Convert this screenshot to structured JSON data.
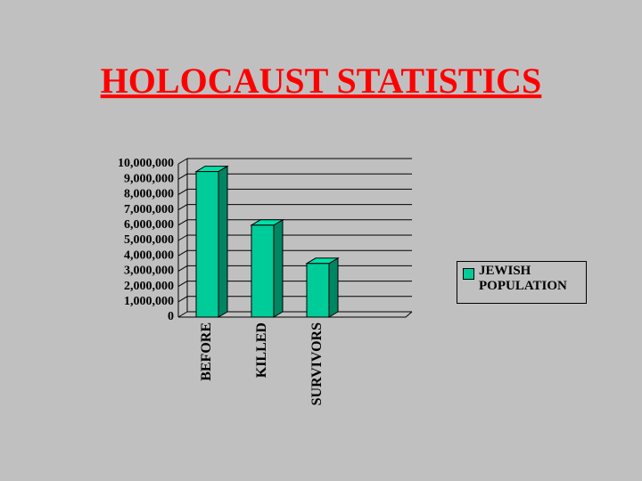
{
  "chart_data": {
    "type": "bar3d",
    "title": "HOLOCAUST STATISTICS",
    "categories": [
      "BEFORE",
      "KILLED",
      "SURVIVORS"
    ],
    "series": [
      {
        "name": "JEWISH POPULATION",
        "color": "#00cc99",
        "values": [
          9500000,
          6000000,
          3500000
        ]
      }
    ],
    "ylim": [
      0,
      10000000
    ],
    "yticks": [
      0,
      {
        "value": 1000000,
        "label": "1,000,000"
      },
      {
        "value": 2000000,
        "label": "2,000,000"
      },
      {
        "value": 3000000,
        "label": "3,000,000"
      },
      {
        "value": 4000000,
        "label": "4,000,000"
      },
      {
        "value": 5000000,
        "label": "5,000,000"
      },
      {
        "value": 6000000,
        "label": "6,000,000"
      },
      {
        "value": 7000000,
        "label": "7,000,000"
      },
      {
        "value": 8000000,
        "label": "8,000,000"
      },
      {
        "value": 9000000,
        "label": "9,000,000"
      },
      {
        "value": 10000000,
        "label": "10,000,000"
      }
    ],
    "grid": true,
    "legend": "right"
  }
}
